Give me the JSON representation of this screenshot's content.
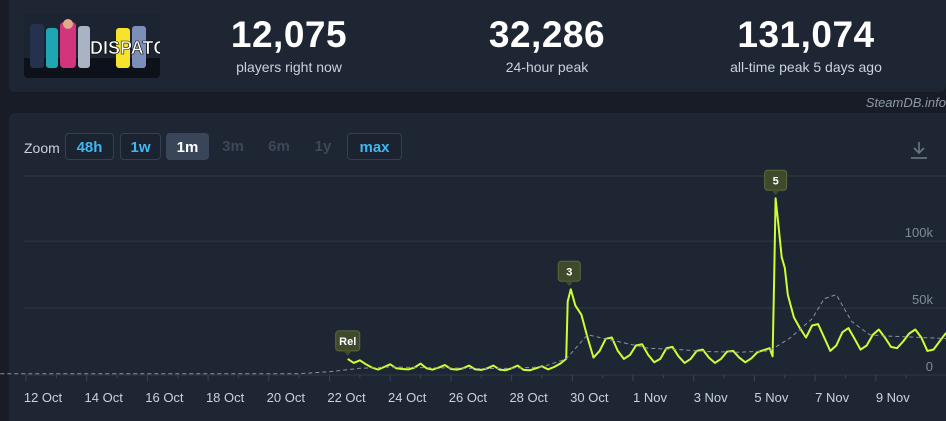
{
  "stats": {
    "current": {
      "value": "12,075",
      "label": "players right now"
    },
    "peak24": {
      "value": "32,286",
      "label": "24-hour peak"
    },
    "alltime": {
      "value": "131,074",
      "label": "all-time peak 5 days ago"
    }
  },
  "game_logo_text": "DISPATCH",
  "credit": "SteamDB.info",
  "zoom": {
    "label": "Zoom",
    "buttons": [
      {
        "label": "48h",
        "state": "enabled"
      },
      {
        "label": "1w",
        "state": "enabled"
      },
      {
        "label": "1m",
        "state": "active"
      },
      {
        "label": "3m",
        "state": "disabled"
      },
      {
        "label": "6m",
        "state": "disabled"
      },
      {
        "label": "1y",
        "state": "disabled"
      },
      {
        "label": "max",
        "state": "enabled"
      }
    ]
  },
  "download_icon": "download-icon",
  "colors": {
    "line": "#ccff33",
    "avg": "#8a93a0",
    "grid": "#2f3846",
    "accent": "#3fb7f2",
    "flag_bg": "#3f4a2d"
  },
  "chart_data": {
    "type": "line",
    "x_labels": [
      "12 Oct",
      "14 Oct",
      "16 Oct",
      "18 Oct",
      "20 Oct",
      "22 Oct",
      "24 Oct",
      "26 Oct",
      "28 Oct",
      "30 Oct",
      "1 Nov",
      "3 Nov",
      "5 Nov",
      "7 Nov",
      "9 Nov"
    ],
    "y_ticks": [
      "0",
      "50k",
      "100k"
    ],
    "ylim": [
      0,
      140000
    ],
    "grid": true,
    "series": [
      {
        "style": "solid",
        "points": [
          [
            22.6,
            12000
          ],
          [
            22.8,
            9000
          ],
          [
            23.0,
            11000
          ],
          [
            23.2,
            8000
          ],
          [
            23.4,
            5500
          ],
          [
            23.6,
            4000
          ],
          [
            23.8,
            6000
          ],
          [
            24.0,
            8000
          ],
          [
            24.2,
            5000
          ],
          [
            24.4,
            4500
          ],
          [
            24.6,
            4200
          ],
          [
            24.8,
            5500
          ],
          [
            25.0,
            8500
          ],
          [
            25.2,
            5000
          ],
          [
            25.4,
            4000
          ],
          [
            25.6,
            5500
          ],
          [
            25.8,
            7500
          ],
          [
            26.0,
            4500
          ],
          [
            26.2,
            4000
          ],
          [
            26.4,
            5000
          ],
          [
            26.6,
            7000
          ],
          [
            26.8,
            4200
          ],
          [
            27.0,
            3800
          ],
          [
            27.2,
            5000
          ],
          [
            27.4,
            7000
          ],
          [
            27.6,
            4000
          ],
          [
            27.8,
            3500
          ],
          [
            28.0,
            5000
          ],
          [
            28.2,
            7000
          ],
          [
            28.4,
            3800
          ],
          [
            28.6,
            3500
          ],
          [
            28.8,
            5000
          ],
          [
            29.0,
            6500
          ],
          [
            29.2,
            4200
          ],
          [
            29.4,
            6000
          ],
          [
            29.6,
            8500
          ],
          [
            29.8,
            12000
          ],
          [
            29.85,
            55000
          ],
          [
            29.95,
            64000
          ],
          [
            30.1,
            52000
          ],
          [
            30.3,
            45000
          ],
          [
            30.5,
            28000
          ],
          [
            30.7,
            13000
          ],
          [
            30.9,
            18000
          ],
          [
            31.1,
            27000
          ],
          [
            31.3,
            28000
          ],
          [
            31.5,
            18000
          ],
          [
            31.7,
            12000
          ],
          [
            31.9,
            15000
          ],
          [
            32.1,
            22000
          ],
          [
            32.3,
            23000
          ],
          [
            32.5,
            15000
          ],
          [
            32.7,
            9500
          ],
          [
            32.9,
            12000
          ],
          [
            33.1,
            20000
          ],
          [
            33.3,
            21000
          ],
          [
            33.5,
            14000
          ],
          [
            33.7,
            9000
          ],
          [
            33.9,
            12000
          ],
          [
            34.1,
            18000
          ],
          [
            34.3,
            19000
          ],
          [
            34.5,
            13000
          ],
          [
            34.7,
            9000
          ],
          [
            34.9,
            12000
          ],
          [
            35.1,
            17500
          ],
          [
            35.3,
            18000
          ],
          [
            35.5,
            13000
          ],
          [
            35.7,
            9500
          ],
          [
            35.9,
            12500
          ],
          [
            36.1,
            17000
          ],
          [
            36.3,
            18500
          ],
          [
            36.5,
            20000
          ],
          [
            36.6,
            14000
          ],
          [
            36.65,
            70000
          ],
          [
            36.7,
            132000
          ],
          [
            36.8,
            110000
          ],
          [
            36.9,
            88000
          ],
          [
            37.0,
            80000
          ],
          [
            37.1,
            60000
          ],
          [
            37.3,
            43000
          ],
          [
            37.5,
            35000
          ],
          [
            37.7,
            28000
          ],
          [
            37.9,
            37000
          ],
          [
            38.1,
            38000
          ],
          [
            38.3,
            28000
          ],
          [
            38.5,
            18000
          ],
          [
            38.7,
            22000
          ],
          [
            38.9,
            32000
          ],
          [
            39.1,
            35000
          ],
          [
            39.3,
            27000
          ],
          [
            39.5,
            19000
          ],
          [
            39.7,
            22000
          ],
          [
            39.9,
            30000
          ],
          [
            40.1,
            34000
          ],
          [
            40.3,
            28000
          ],
          [
            40.5,
            21000
          ],
          [
            40.7,
            20000
          ],
          [
            40.9,
            25000
          ],
          [
            41.1,
            31000
          ],
          [
            41.3,
            34000
          ],
          [
            41.5,
            28000
          ],
          [
            41.7,
            18000
          ],
          [
            41.9,
            19000
          ],
          [
            42.1,
            25000
          ],
          [
            42.3,
            31000
          ],
          [
            42.5,
            28000
          ],
          [
            42.7,
            18000
          ],
          [
            42.8,
            14000
          ],
          [
            43.0,
            12000
          ]
        ]
      },
      {
        "style": "dashed",
        "points": [
          [
            10.0,
            1000
          ],
          [
            21.0,
            1000
          ],
          [
            22.0,
            2500
          ],
          [
            23.0,
            5000
          ],
          [
            24.0,
            6000
          ],
          [
            25.0,
            5500
          ],
          [
            26.0,
            5200
          ],
          [
            27.0,
            4800
          ],
          [
            28.0,
            5000
          ],
          [
            29.0,
            6000
          ],
          [
            29.8,
            12000
          ],
          [
            30.5,
            30000
          ],
          [
            31.5,
            25000
          ],
          [
            32.5,
            20000
          ],
          [
            33.5,
            19000
          ],
          [
            34.5,
            17500
          ],
          [
            35.5,
            17000
          ],
          [
            36.5,
            18000
          ],
          [
            37.2,
            28000
          ],
          [
            37.9,
            42000
          ],
          [
            38.3,
            57000
          ],
          [
            38.7,
            60000
          ],
          [
            39.2,
            40000
          ],
          [
            39.8,
            30000
          ],
          [
            40.5,
            29000
          ],
          [
            41.5,
            28000
          ],
          [
            42.5,
            27000
          ],
          [
            43.0,
            25500
          ]
        ]
      }
    ],
    "flags": [
      {
        "label": "Rel",
        "x": 22.6,
        "y": 12000
      },
      {
        "label": "3",
        "x": 29.9,
        "y": 64000
      },
      {
        "label": "5",
        "x": 36.7,
        "y": 132000
      }
    ]
  }
}
